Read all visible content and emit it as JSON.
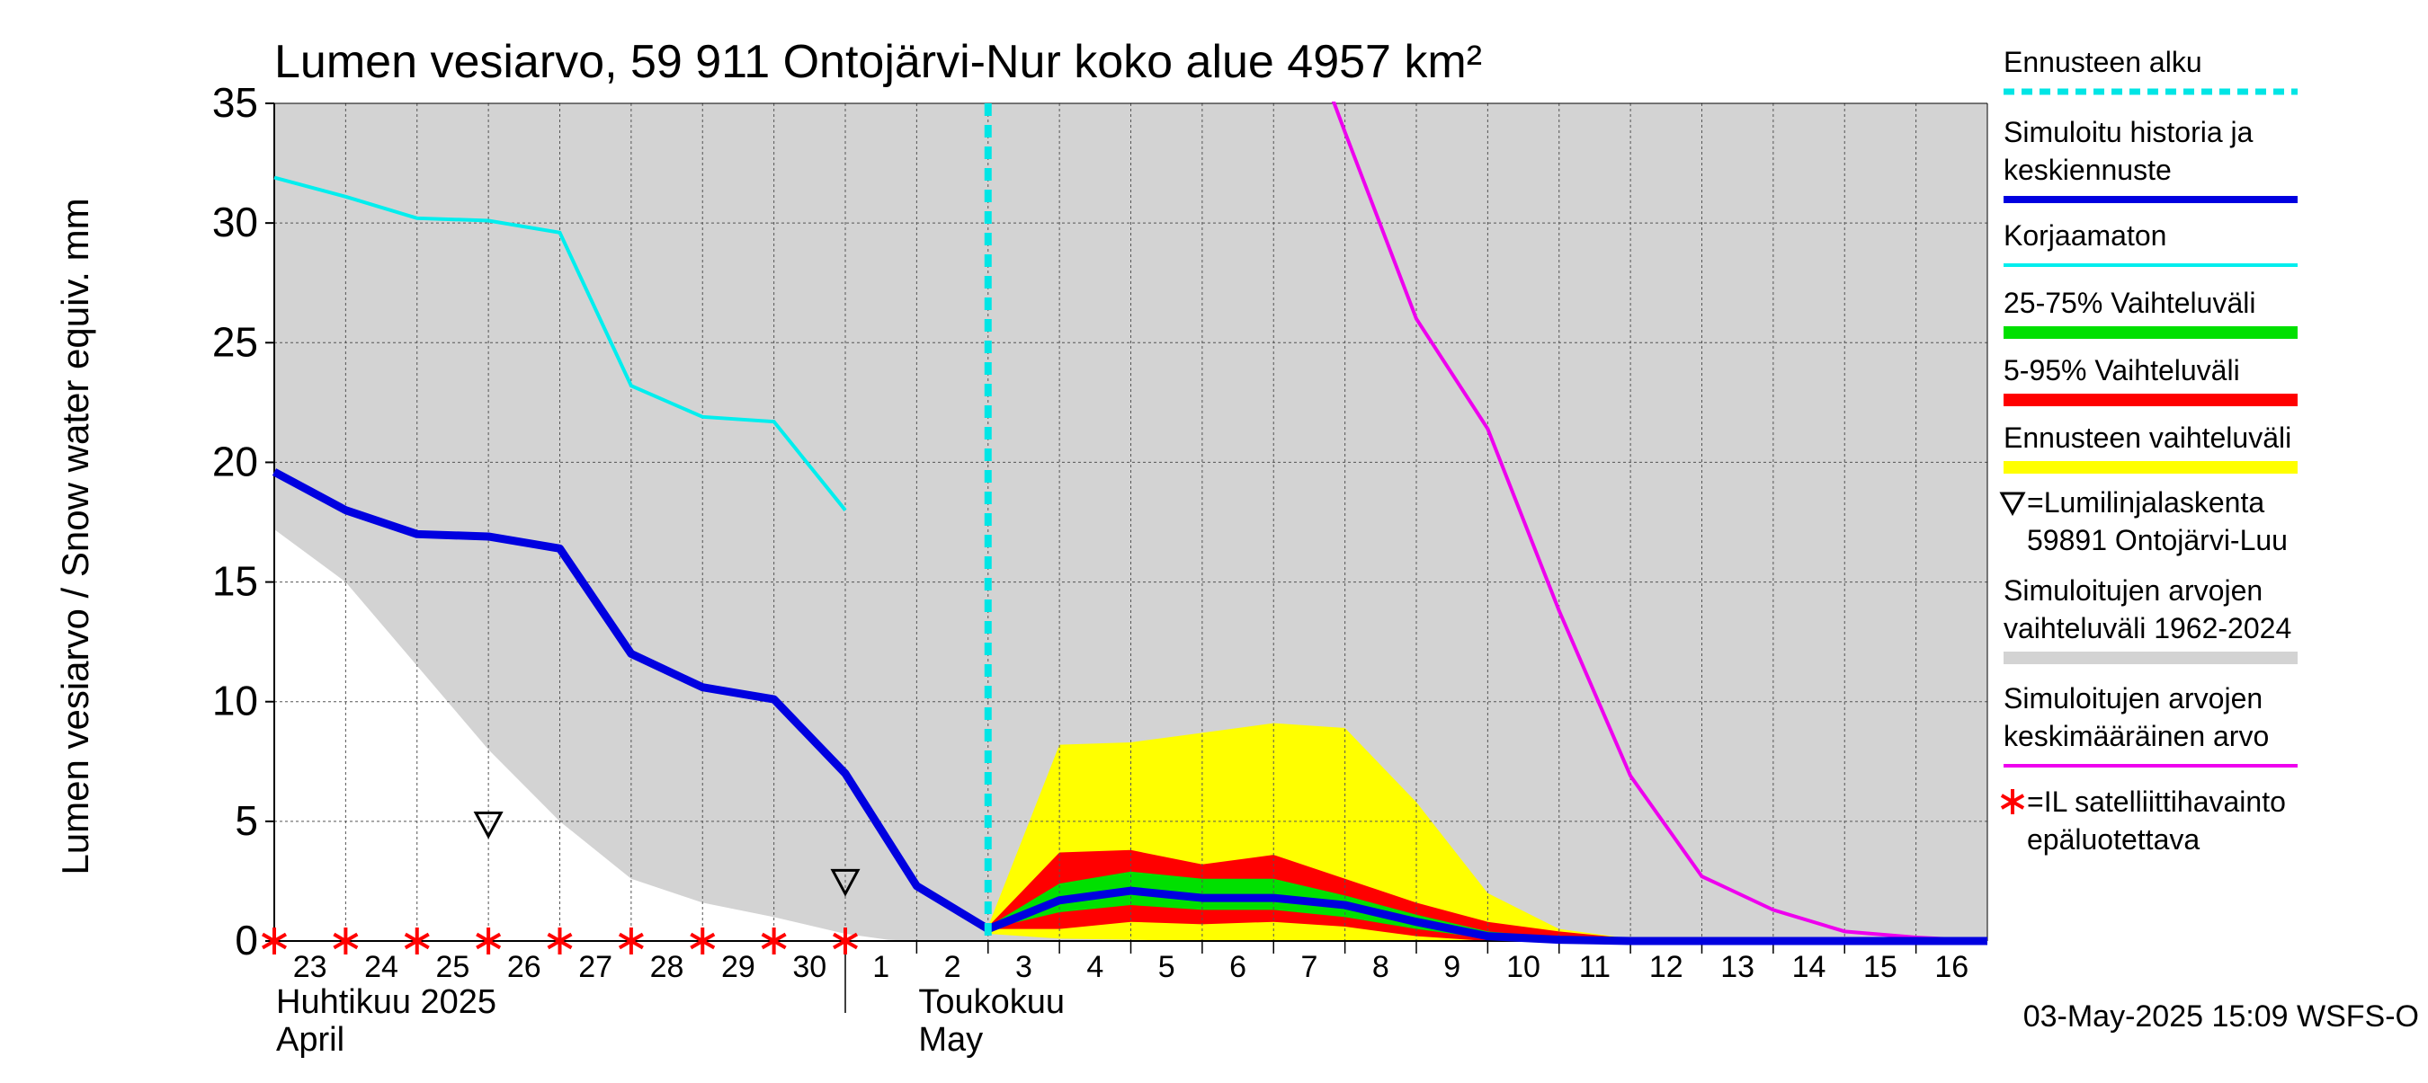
{
  "chart_data": {
    "type": "area",
    "title": "Lumen vesiarvo, 59 911 Ontojärvi-Nur koko alue 4957 km²",
    "ylabel": "Lumen vesiarvo / Snow water equiv.    mm",
    "ylim": [
      0,
      35
    ],
    "yticks": [
      0,
      5,
      10,
      15,
      20,
      25,
      30,
      35
    ],
    "xlim": [
      0,
      24
    ],
    "grid": true,
    "x_tick_labels": [
      "23",
      "24",
      "25",
      "26",
      "27",
      "28",
      "29",
      "30",
      "1",
      "2",
      "3",
      "4",
      "5",
      "6",
      "7",
      "8",
      "9",
      "10",
      "11",
      "12",
      "13",
      "14",
      "15",
      "16"
    ],
    "month_labels": [
      {
        "x": 0.0,
        "line1": "Huhtikuu  2025",
        "line2": "April"
      },
      {
        "x": 9.0,
        "line1": "Toukokuu",
        "line2": "May"
      }
    ],
    "month_separator_x": 8,
    "forecast_start_x": 10,
    "timestamp": "03-May-2025 15:09 WSFS-O",
    "colors": {
      "range_hist": "#d3d3d3",
      "forecast_range": "#ffff00",
      "p5_95": "#ff0000",
      "p25_75": "#00e000",
      "median": "#0000e0",
      "uncorrected": "#00eeee",
      "mean": "#ee00ee",
      "forecast_start": "#00e5e5",
      "satellite": "#ff0000",
      "snow_line": "#000000"
    },
    "series": {
      "range_hist": {
        "x": [
          0,
          1,
          2,
          3,
          4,
          5,
          6,
          7,
          8,
          8.6,
          9,
          10,
          24
        ],
        "lower": [
          17.2,
          15,
          11.5,
          8,
          5,
          2.6,
          1.6,
          1.0,
          0.3,
          0.05,
          0,
          0,
          0
        ],
        "upper": [
          35,
          35,
          35,
          35,
          35,
          35,
          35,
          35,
          35,
          35,
          35,
          35,
          35
        ]
      },
      "forecast_range": {
        "x": [
          10,
          11,
          12,
          13,
          14,
          15,
          16,
          17,
          18,
          19,
          20,
          21,
          22,
          23,
          24
        ],
        "lower": [
          0.3,
          0.1,
          0.05,
          0,
          0,
          0,
          0,
          0,
          0,
          0,
          0,
          0,
          0,
          0,
          0
        ],
        "upper": [
          0.6,
          8.2,
          8.3,
          8.7,
          9.1,
          8.9,
          5.8,
          2.0,
          0.5,
          0.1,
          0,
          0,
          0,
          0,
          0
        ]
      },
      "p5_95": {
        "x": [
          10,
          11,
          12,
          13,
          14,
          15,
          16,
          17,
          18,
          19,
          20,
          21,
          22,
          23,
          24
        ],
        "lower": [
          0.5,
          0.5,
          0.8,
          0.7,
          0.8,
          0.6,
          0.2,
          0,
          0,
          0,
          0,
          0,
          0,
          0,
          0
        ],
        "upper": [
          0.6,
          3.7,
          3.8,
          3.2,
          3.6,
          2.6,
          1.6,
          0.8,
          0.4,
          0.1,
          0,
          0,
          0,
          0,
          0
        ]
      },
      "p25_75": {
        "x": [
          10,
          11,
          12,
          13,
          14,
          15,
          16,
          17,
          18,
          19,
          20,
          21,
          22,
          23,
          24
        ],
        "lower": [
          0.5,
          1.2,
          1.5,
          1.3,
          1.3,
          1.0,
          0.5,
          0.1,
          0,
          0,
          0,
          0,
          0,
          0,
          0
        ],
        "upper": [
          0.6,
          2.4,
          2.9,
          2.6,
          2.6,
          1.9,
          1.1,
          0.4,
          0.15,
          0.05,
          0,
          0,
          0,
          0,
          0
        ]
      },
      "median": {
        "name": "Simuloitu historia ja keskiennuste",
        "x": [
          0,
          1,
          2,
          3,
          4,
          5,
          6,
          7,
          8,
          9,
          10,
          11,
          12,
          13,
          14,
          15,
          16,
          17,
          18,
          19,
          20,
          21,
          22,
          23,
          24
        ],
        "y": [
          19.6,
          18.0,
          17.0,
          16.9,
          16.4,
          12.0,
          10.6,
          10.1,
          7.0,
          2.3,
          0.5,
          1.7,
          2.1,
          1.8,
          1.8,
          1.5,
          0.8,
          0.2,
          0.05,
          0,
          0,
          0,
          0,
          0,
          0
        ]
      },
      "uncorrected": {
        "name": "Korjaamaton",
        "x": [
          0,
          1,
          2,
          3,
          4,
          5,
          6,
          7,
          8
        ],
        "y": [
          31.9,
          31.1,
          30.2,
          30.1,
          29.6,
          23.2,
          21.9,
          21.7,
          18.0
        ]
      },
      "mean": {
        "name": "Simuloitujen arvojen keskimääräinen arvo",
        "x": [
          14.8,
          15,
          16,
          17,
          18,
          19,
          20,
          21,
          22,
          23,
          24
        ],
        "y": [
          35.5,
          33.8,
          26.0,
          21.4,
          13.8,
          6.9,
          2.7,
          1.3,
          0.4,
          0.15,
          0
        ]
      },
      "snow_line_obs": {
        "x": [
          3,
          8
        ],
        "y": [
          4.9,
          2.5
        ]
      },
      "satellite_obs": {
        "x": [
          0,
          1,
          2,
          3,
          4,
          5,
          6,
          7,
          8
        ],
        "y": [
          0,
          0,
          0,
          0,
          0,
          0,
          0,
          0,
          0
        ]
      }
    },
    "legend": [
      {
        "key": "forecast_start",
        "label": "Ennusteen alku",
        "style": "dash"
      },
      {
        "key": "median",
        "label": "Simuloitu historia ja\nkeskiennuste",
        "style": "line"
      },
      {
        "key": "uncorrected",
        "label": "Korjaamaton",
        "style": "line"
      },
      {
        "key": "p25_75",
        "label": "25-75% Vaihteluväli",
        "style": "band"
      },
      {
        "key": "p5_95",
        "label": "5-95% Vaihteluväli",
        "style": "band"
      },
      {
        "key": "forecast_range",
        "label": "Ennusteen vaihteluväli",
        "style": "band"
      },
      {
        "key": "snow_line",
        "label": "=Lumilinjalaskenta\n59891 Ontojärvi-Luu",
        "style": "triangle"
      },
      {
        "key": "range_hist",
        "label": "Simuloitujen arvojen\nvaihteluväli 1962-2024",
        "style": "band"
      },
      {
        "key": "mean",
        "label": "Simuloitujen arvojen\nkeskimääräinen arvo",
        "style": "line"
      },
      {
        "key": "satellite",
        "label": "=IL satelliittihavainto\nepäluotettava",
        "style": "star"
      }
    ]
  }
}
